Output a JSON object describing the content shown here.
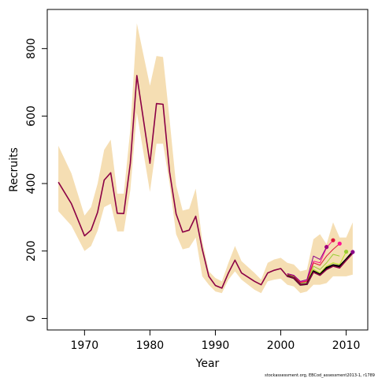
{
  "chart_data": {
    "type": "line",
    "xlabel": "Year",
    "ylabel": "Recruits",
    "xlim": [
      1964.3,
      2013.3
    ],
    "ylim": [
      -34,
      916
    ],
    "x_ticks": [
      1970,
      1980,
      1990,
      2000,
      2010
    ],
    "y_ticks": [
      0,
      200,
      400,
      600,
      800
    ],
    "footnote": "stockassessment.org, EBCod_assessment2013-1, r1789",
    "colors": {
      "band": "#f5deb3",
      "final": "#000000",
      "retro": [
        "#b5e61d",
        "#9acd32",
        "#ff1493",
        "#dc143c",
        "#8b008b",
        "#8b0045"
      ]
    },
    "band": {
      "x": [
        1966,
        1968,
        1970,
        1971,
        1972,
        1973,
        1974,
        1975,
        1976,
        1977,
        1978,
        1980,
        1981,
        1982,
        1983,
        1984,
        1985,
        1986,
        1987,
        1988,
        1989,
        1990,
        1991,
        1992,
        1993,
        1994,
        1996,
        1997,
        1998,
        1999,
        2000,
        2001,
        2002,
        2003,
        2004,
        2005,
        2006,
        2007,
        2008,
        2009,
        2010,
        2011
      ],
      "upper": [
        512,
        430,
        305,
        330,
        400,
        500,
        530,
        370,
        370,
        560,
        875,
        690,
        778,
        775,
        590,
        395,
        320,
        325,
        385,
        230,
        140,
        120,
        110,
        165,
        215,
        170,
        135,
        115,
        165,
        175,
        180,
        165,
        160,
        140,
        145,
        235,
        250,
        220,
        285,
        240,
        240,
        285
      ],
      "lower": [
        318,
        275,
        200,
        215,
        260,
        330,
        340,
        258,
        258,
        380,
        610,
        375,
        518,
        518,
        400,
        250,
        205,
        210,
        240,
        125,
        100,
        80,
        75,
        115,
        140,
        115,
        85,
        75,
        110,
        115,
        118,
        100,
        95,
        75,
        80,
        100,
        100,
        105,
        125,
        125,
        125,
        130
      ]
    },
    "series": [
      {
        "x": [
          1966,
          1968,
          1970,
          1971,
          1972,
          1973,
          1974,
          1975,
          1976,
          1977,
          1978,
          1980,
          1981,
          1982,
          1983,
          1984,
          1985,
          1986,
          1987,
          1988,
          1989,
          1990,
          1991,
          1992,
          1993,
          1994,
          1996,
          1997,
          1998,
          1999,
          2000,
          2001,
          2002,
          2003,
          2004,
          2005,
          2006,
          2007,
          2008,
          2009,
          2010,
          2011
        ],
        "values": [
          404,
          340,
          245,
          262,
          315,
          410,
          432,
          312,
          311,
          460,
          720,
          460,
          637,
          635,
          435,
          310,
          256,
          262,
          303,
          205,
          125,
          98,
          90,
          135,
          173,
          135,
          110,
          100,
          135,
          143,
          148,
          125,
          120,
          100,
          102,
          137,
          128,
          145,
          155,
          150,
          172,
          193
        ]
      },
      {
        "x": [
          2001,
          2002,
          2003,
          2004,
          2005,
          2006,
          2007,
          2008,
          2009,
          2010
        ],
        "values": [
          128,
          122,
          102,
          104,
          146,
          135,
          155,
          165,
          160,
          198
        ]
      },
      {
        "x": [
          2001,
          2002,
          2003,
          2004,
          2005,
          2006,
          2007,
          2008,
          2009
        ],
        "values": [
          130,
          125,
          105,
          108,
          155,
          145,
          165,
          190,
          185
        ]
      },
      {
        "x": [
          2001,
          2002,
          2003,
          2004,
          2005,
          2006,
          2007,
          2008
        ],
        "values": [
          132,
          127,
          108,
          112,
          170,
          165,
          210,
          232
        ]
      },
      {
        "x": [
          2001,
          2002,
          2003,
          2004,
          2005,
          2006,
          2007,
          2008,
          2009
        ],
        "values": [
          131,
          126,
          106,
          110,
          165,
          158,
          185,
          205,
          222
        ]
      },
      {
        "x": [
          2001,
          2002,
          2003,
          2004,
          2005,
          2006,
          2007
        ],
        "values": [
          133,
          128,
          110,
          115,
          185,
          175,
          212
        ]
      },
      {
        "x": [
          2001,
          2002,
          2003,
          2004,
          2005,
          2006,
          2007,
          2008,
          2009,
          2010,
          2011
        ],
        "values": [
          126,
          120,
          100,
          102,
          140,
          130,
          150,
          158,
          155,
          175,
          197
        ]
      }
    ],
    "end_points": [
      {
        "x": 2011,
        "y": 197
      },
      {
        "x": 2010,
        "y": 198
      },
      {
        "x": 2009,
        "y": 222
      },
      {
        "x": 2008,
        "y": 232
      },
      {
        "x": 2007,
        "y": 212
      }
    ]
  }
}
